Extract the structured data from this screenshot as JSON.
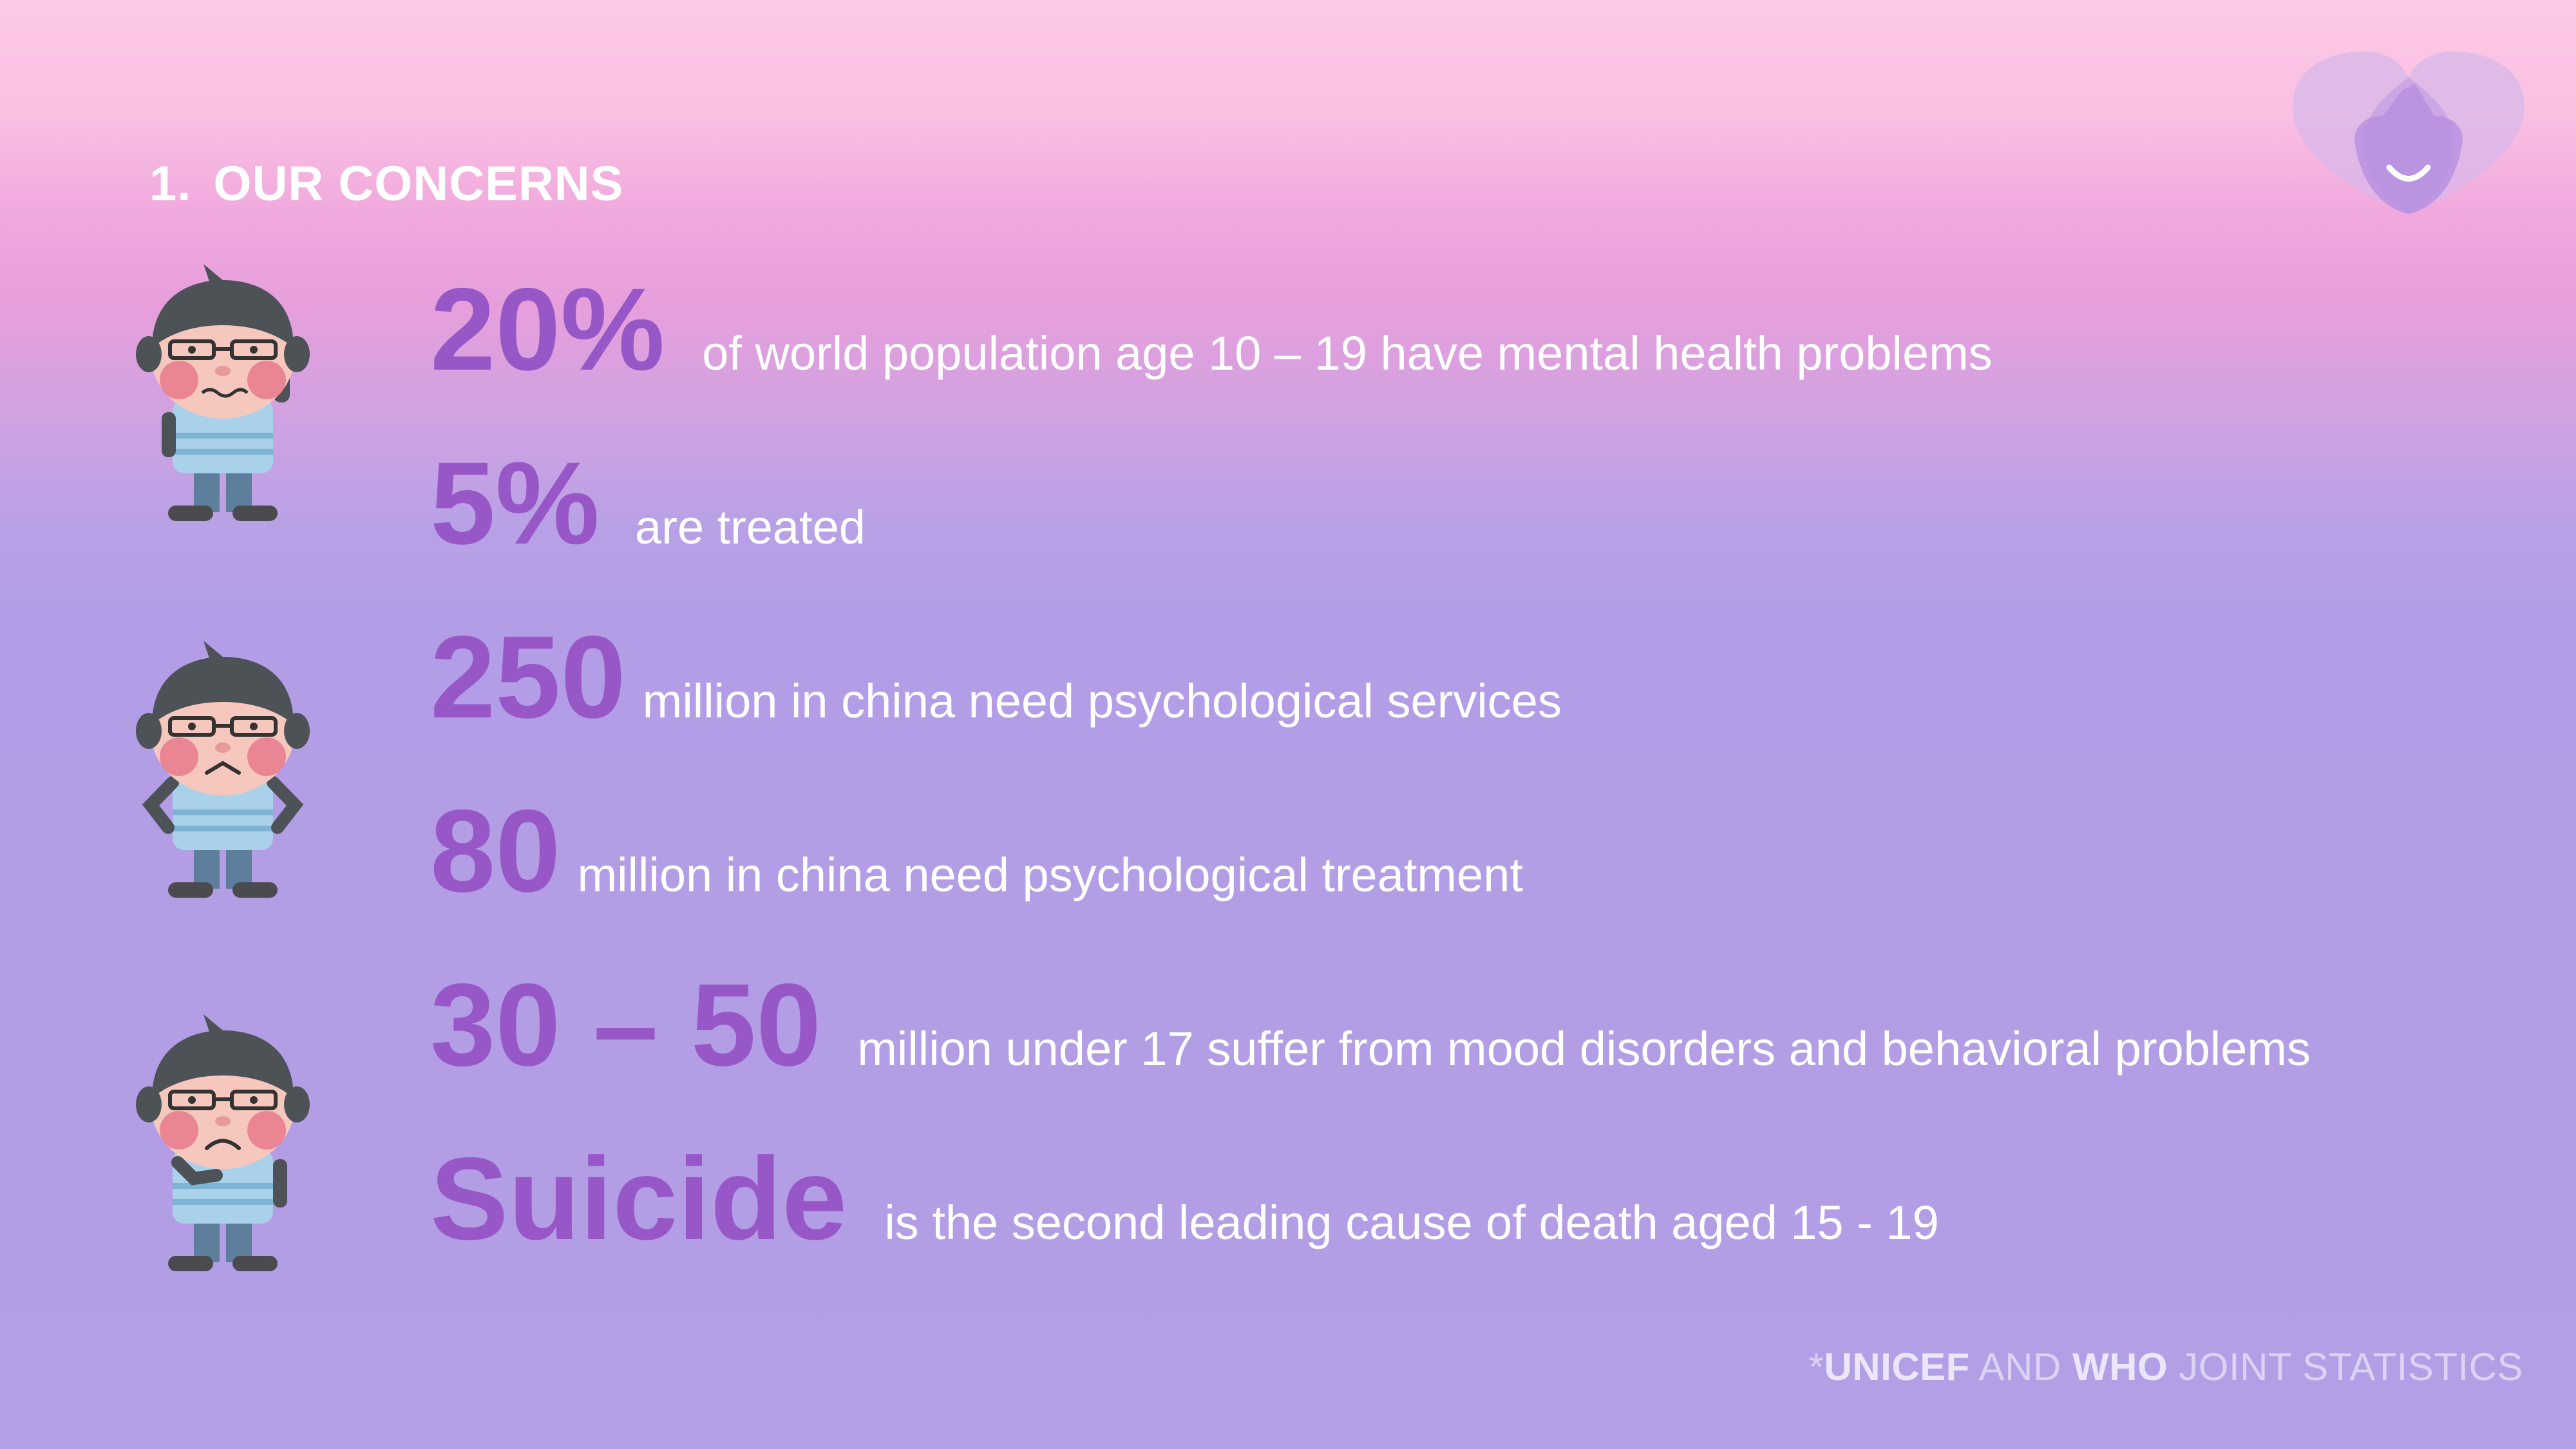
{
  "header": {
    "number": "1.",
    "title": "OUR CONCERNS"
  },
  "stats": [
    {
      "big": "20%",
      "text": "of world population age 10 – 19 have mental health problems"
    },
    {
      "big": "5%",
      "text": "are treated"
    },
    {
      "big": "250",
      "text": "million in china need psychological services"
    },
    {
      "big": "80",
      "text": "million in china need psychological treatment"
    },
    {
      "big": "30 – 50",
      "text": "million under 17 suffer from mood disorders and behavioral problems"
    },
    {
      "big": "Suicide",
      "text": "is the second leading cause of death aged 15 - 19"
    }
  ],
  "footer": {
    "prefix": "*",
    "org1": "UNICEF",
    "and": " AND ",
    "org2": "WHO",
    "suffix": " JOINT STATISTICS"
  },
  "icons": {
    "logo": "heart-smile-logo",
    "characters": [
      "worried-character-icon",
      "frowning-character-icon",
      "sad-character-icon"
    ]
  },
  "colors": {
    "accent": "#9757c6",
    "text": "#ffffff",
    "bg_top": "#fdc9e6",
    "bg_bottom": "#b39fe6"
  }
}
